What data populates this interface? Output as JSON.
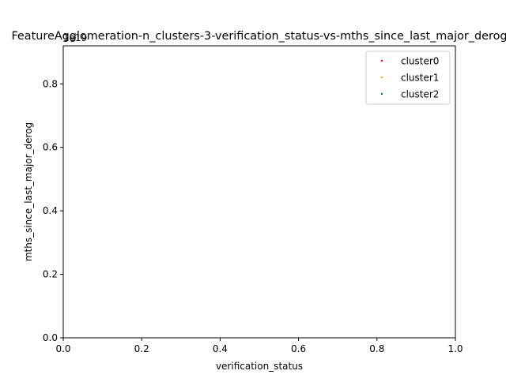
{
  "chart_data": {
    "type": "scatter",
    "title": "FeatureAgglomeration-n_clusters-3-verification_status-vs-mths_since_last_major_derog",
    "xlabel": "verification_status",
    "ylabel": "mths_since_last_major_derog",
    "offset_text": "1e19",
    "xlim": [
      0.0,
      1.0
    ],
    "ylim": [
      0.0,
      0.92
    ],
    "x_ticks": [
      "0.0",
      "0.2",
      "0.4",
      "0.6",
      "0.8",
      "1.0"
    ],
    "y_ticks": [
      "0.0",
      "0.2",
      "0.4",
      "0.6",
      "0.8"
    ],
    "x_tick_values": [
      0.0,
      0.2,
      0.4,
      0.6,
      0.8,
      1.0
    ],
    "y_tick_values": [
      0.0,
      0.2,
      0.4,
      0.6,
      0.8
    ],
    "grid": false,
    "legend_position": "top-right",
    "series": [
      {
        "name": "cluster0",
        "color": "#ff0000",
        "points": []
      },
      {
        "name": "cluster1",
        "color": "#ffa500",
        "points": []
      },
      {
        "name": "cluster2",
        "color": "#008000",
        "points": []
      }
    ]
  }
}
